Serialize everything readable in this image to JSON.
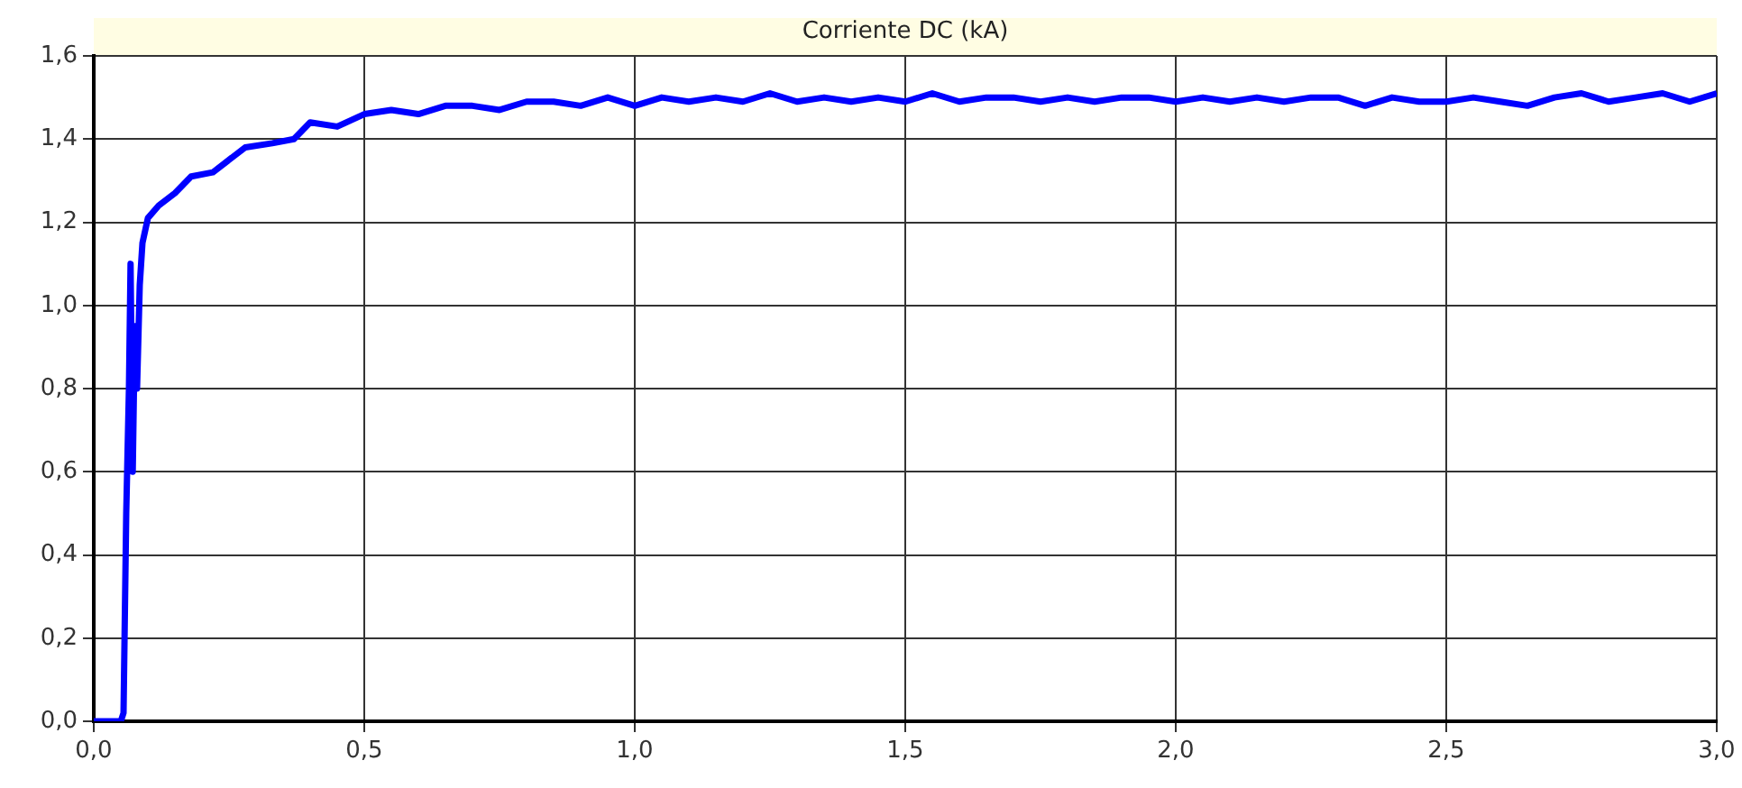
{
  "chart_data": {
    "type": "line",
    "title": "Corriente DC (kA)",
    "x": [
      0,
      0.05,
      0.055,
      0.06,
      0.065,
      0.068,
      0.072,
      0.076,
      0.08,
      0.085,
      0.09,
      0.1,
      0.12,
      0.15,
      0.18,
      0.22,
      0.25,
      0.28,
      0.33,
      0.37,
      0.4,
      0.45,
      0.5,
      0.55,
      0.6,
      0.65,
      0.7,
      0.75,
      0.8,
      0.85,
      0.9,
      0.95,
      1.0,
      1.05,
      1.1,
      1.15,
      1.2,
      1.25,
      1.3,
      1.35,
      1.4,
      1.45,
      1.5,
      1.55,
      1.6,
      1.65,
      1.7,
      1.75,
      1.8,
      1.85,
      1.9,
      1.95,
      2.0,
      2.05,
      2.1,
      2.15,
      2.2,
      2.25,
      2.3,
      2.35,
      2.4,
      2.45,
      2.5,
      2.55,
      2.6,
      2.65,
      2.7,
      2.75,
      2.8,
      2.85,
      2.9,
      2.95,
      3.0
    ],
    "series": [
      {
        "color": "#0000ff",
        "values": [
          0,
          0,
          0.02,
          0.5,
          0.8,
          1.1,
          0.6,
          0.95,
          0.8,
          1.05,
          1.15,
          1.21,
          1.24,
          1.27,
          1.31,
          1.32,
          1.35,
          1.38,
          1.39,
          1.4,
          1.44,
          1.43,
          1.46,
          1.47,
          1.46,
          1.48,
          1.48,
          1.47,
          1.49,
          1.49,
          1.48,
          1.5,
          1.48,
          1.5,
          1.49,
          1.5,
          1.49,
          1.51,
          1.49,
          1.5,
          1.49,
          1.5,
          1.49,
          1.51,
          1.49,
          1.5,
          1.5,
          1.49,
          1.5,
          1.49,
          1.5,
          1.5,
          1.49,
          1.5,
          1.49,
          1.5,
          1.49,
          1.5,
          1.5,
          1.48,
          1.5,
          1.49,
          1.49,
          1.5,
          1.49,
          1.48,
          1.5,
          1.51,
          1.49,
          1.5,
          1.51,
          1.49,
          1.51
        ]
      }
    ],
    "xlim": [
      0,
      3
    ],
    "ylim": [
      0,
      1.6
    ],
    "xticks": [
      {
        "value": 0,
        "label": "0,0"
      },
      {
        "value": 0.5,
        "label": "0,5"
      },
      {
        "value": 1,
        "label": "1,0"
      },
      {
        "value": 1.5,
        "label": "1,5"
      },
      {
        "value": 2,
        "label": "2,0"
      },
      {
        "value": 2.5,
        "label": "2,5"
      },
      {
        "value": 3,
        "label": "3,0"
      }
    ],
    "yticks": [
      {
        "value": 0,
        "label": "0,0"
      },
      {
        "value": 0.2,
        "label": "0,2"
      },
      {
        "value": 0.4,
        "label": "0,4"
      },
      {
        "value": 0.6,
        "label": "0,6"
      },
      {
        "value": 0.8,
        "label": "0,8"
      },
      {
        "value": 1,
        "label": "1,0"
      },
      {
        "value": 1.2,
        "label": "1,2"
      },
      {
        "value": 1.4,
        "label": "1,4"
      },
      {
        "value": 1.6,
        "label": "1,6"
      }
    ],
    "grid": true,
    "line_style": "solid",
    "marker": "none",
    "legend": false
  }
}
